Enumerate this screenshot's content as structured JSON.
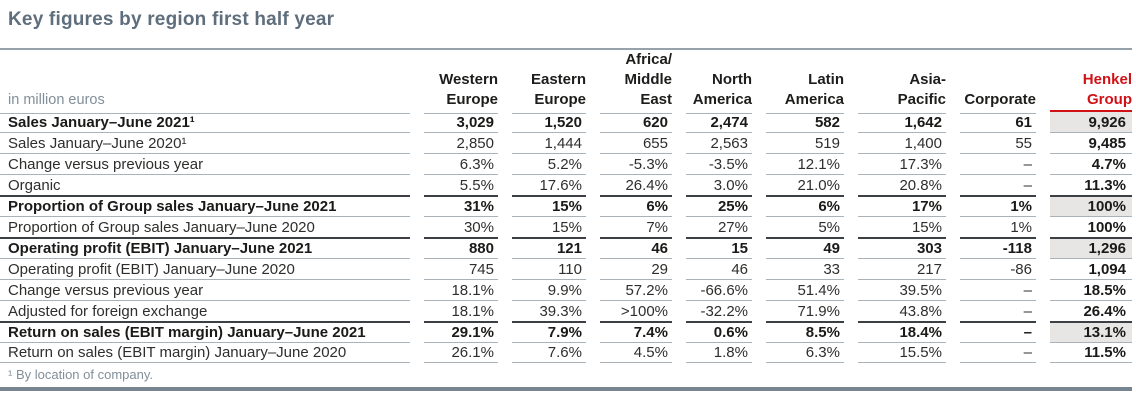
{
  "title": "Key figures by region first half year",
  "unit_label": "in million euros",
  "footnote": "¹ By location of company.",
  "colors": {
    "accent_red": "#d01217",
    "title_gray": "#5f6e7d",
    "muted_gray": "#828f99",
    "line_gray": "#aab2b9",
    "dark_line": "#3c4044",
    "rule_gray": "#97a1ab",
    "bar_gray": "#788591",
    "cell_bg": "#e7e6e4"
  },
  "table": {
    "columns": [
      "Western\nEurope",
      "Eastern\nEurope",
      "Africa/\nMiddle\nEast",
      "North\nAmerica",
      "Latin\nAmerica",
      "Asia-\nPacific",
      "Corporate",
      "Henkel\nGroup"
    ],
    "rows": [
      {
        "label": "Sales January–June 2021¹",
        "bold": true,
        "values": [
          "3,029",
          "1,520",
          "620",
          "2,474",
          "582",
          "1,642",
          "61",
          "9,926"
        ]
      },
      {
        "label": "Sales January–June 2020¹",
        "bold": false,
        "values": [
          "2,850",
          "1,444",
          "655",
          "2,563",
          "519",
          "1,400",
          "55",
          "9,485"
        ]
      },
      {
        "label": "Change versus previous year",
        "bold": false,
        "values": [
          "6.3%",
          "5.2%",
          "-5.3%",
          "-3.5%",
          "12.1%",
          "17.3%",
          "–",
          "4.7%"
        ]
      },
      {
        "label": "Organic",
        "bold": false,
        "values": [
          "5.5%",
          "17.6%",
          "26.4%",
          "3.0%",
          "21.0%",
          "20.8%",
          "–",
          "11.3%"
        ]
      },
      {
        "label": "Proportion of Group sales January–June 2021",
        "bold": true,
        "values": [
          "31%",
          "15%",
          "6%",
          "25%",
          "6%",
          "17%",
          "1%",
          "100%"
        ]
      },
      {
        "label": "Proportion of Group sales January–June 2020",
        "bold": false,
        "values": [
          "30%",
          "15%",
          "7%",
          "27%",
          "5%",
          "15%",
          "1%",
          "100%"
        ]
      },
      {
        "label": "Operating profit (EBIT) January–June 2021",
        "bold": true,
        "values": [
          "880",
          "121",
          "46",
          "15",
          "49",
          "303",
          "-118",
          "1,296"
        ]
      },
      {
        "label": "Operating profit (EBIT) January–June 2020",
        "bold": false,
        "values": [
          "745",
          "110",
          "29",
          "46",
          "33",
          "217",
          "-86",
          "1,094"
        ]
      },
      {
        "label": "Change versus previous year",
        "bold": false,
        "values": [
          "18.1%",
          "9.9%",
          "57.2%",
          "-66.6%",
          "51.4%",
          "39.5%",
          "–",
          "18.5%"
        ]
      },
      {
        "label": "Adjusted for foreign exchange",
        "bold": false,
        "values": [
          "18.1%",
          "39.3%",
          ">100%",
          "-32.2%",
          "71.9%",
          "43.8%",
          "–",
          "26.4%"
        ]
      },
      {
        "label": "Return on sales (EBIT margin) January–June 2021",
        "bold": true,
        "values": [
          "29.1%",
          "7.9%",
          "7.4%",
          "0.6%",
          "8.5%",
          "18.4%",
          "–",
          "13.1%"
        ]
      },
      {
        "label": "Return on sales (EBIT margin) January–June 2020",
        "bold": false,
        "values": [
          "26.1%",
          "7.6%",
          "4.5%",
          "1.8%",
          "6.3%",
          "15.5%",
          "–",
          "11.5%"
        ]
      }
    ]
  }
}
